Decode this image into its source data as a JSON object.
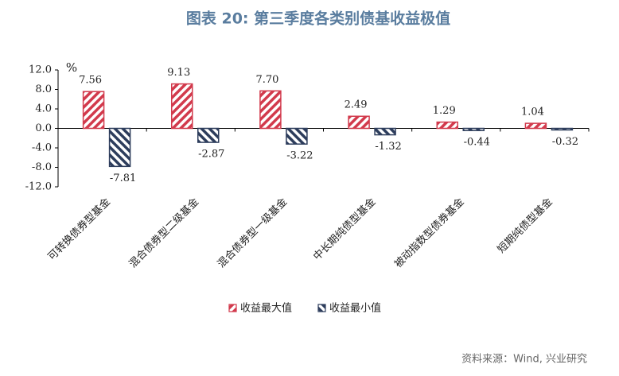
{
  "chart_data": {
    "type": "bar",
    "title": "图表 20: 第三季度各类别债基收益极值",
    "y_label": "%",
    "categories": [
      "可转换债券型基金",
      "混合债券型二级基金",
      "混合债券型一级基金",
      "中长期纯债型基金",
      "被动指数型债券基金",
      "短期纯债型基金"
    ],
    "series": [
      {
        "name": "收益最大值",
        "color": "#d23a4c",
        "values": [
          7.56,
          9.13,
          7.7,
          2.49,
          1.29,
          1.04
        ],
        "value_labels": [
          "7.56",
          "9.13",
          "7.70",
          "2.49",
          "1.29",
          "1.04"
        ]
      },
      {
        "name": "收益最小值",
        "color": "#2d3d5c",
        "values": [
          -7.81,
          -2.87,
          -3.22,
          -1.32,
          -0.44,
          -0.32
        ],
        "value_labels": [
          "-7.81",
          "-2.87",
          "-3.22",
          "-1.32",
          "-0.44",
          "-0.32"
        ]
      }
    ],
    "ylim": [
      -12,
      12
    ],
    "yticks": [
      {
        "value": 12,
        "label": "12.0"
      },
      {
        "value": 8,
        "label": "8.0"
      },
      {
        "value": 4,
        "label": "4.0"
      },
      {
        "value": 0,
        "label": "0.0"
      },
      {
        "value": -4,
        "label": "-4.0"
      },
      {
        "value": -8,
        "label": "-8.0"
      },
      {
        "value": -12,
        "label": "-12.0"
      }
    ],
    "source": "资料来源：Wind, 兴业研究"
  }
}
